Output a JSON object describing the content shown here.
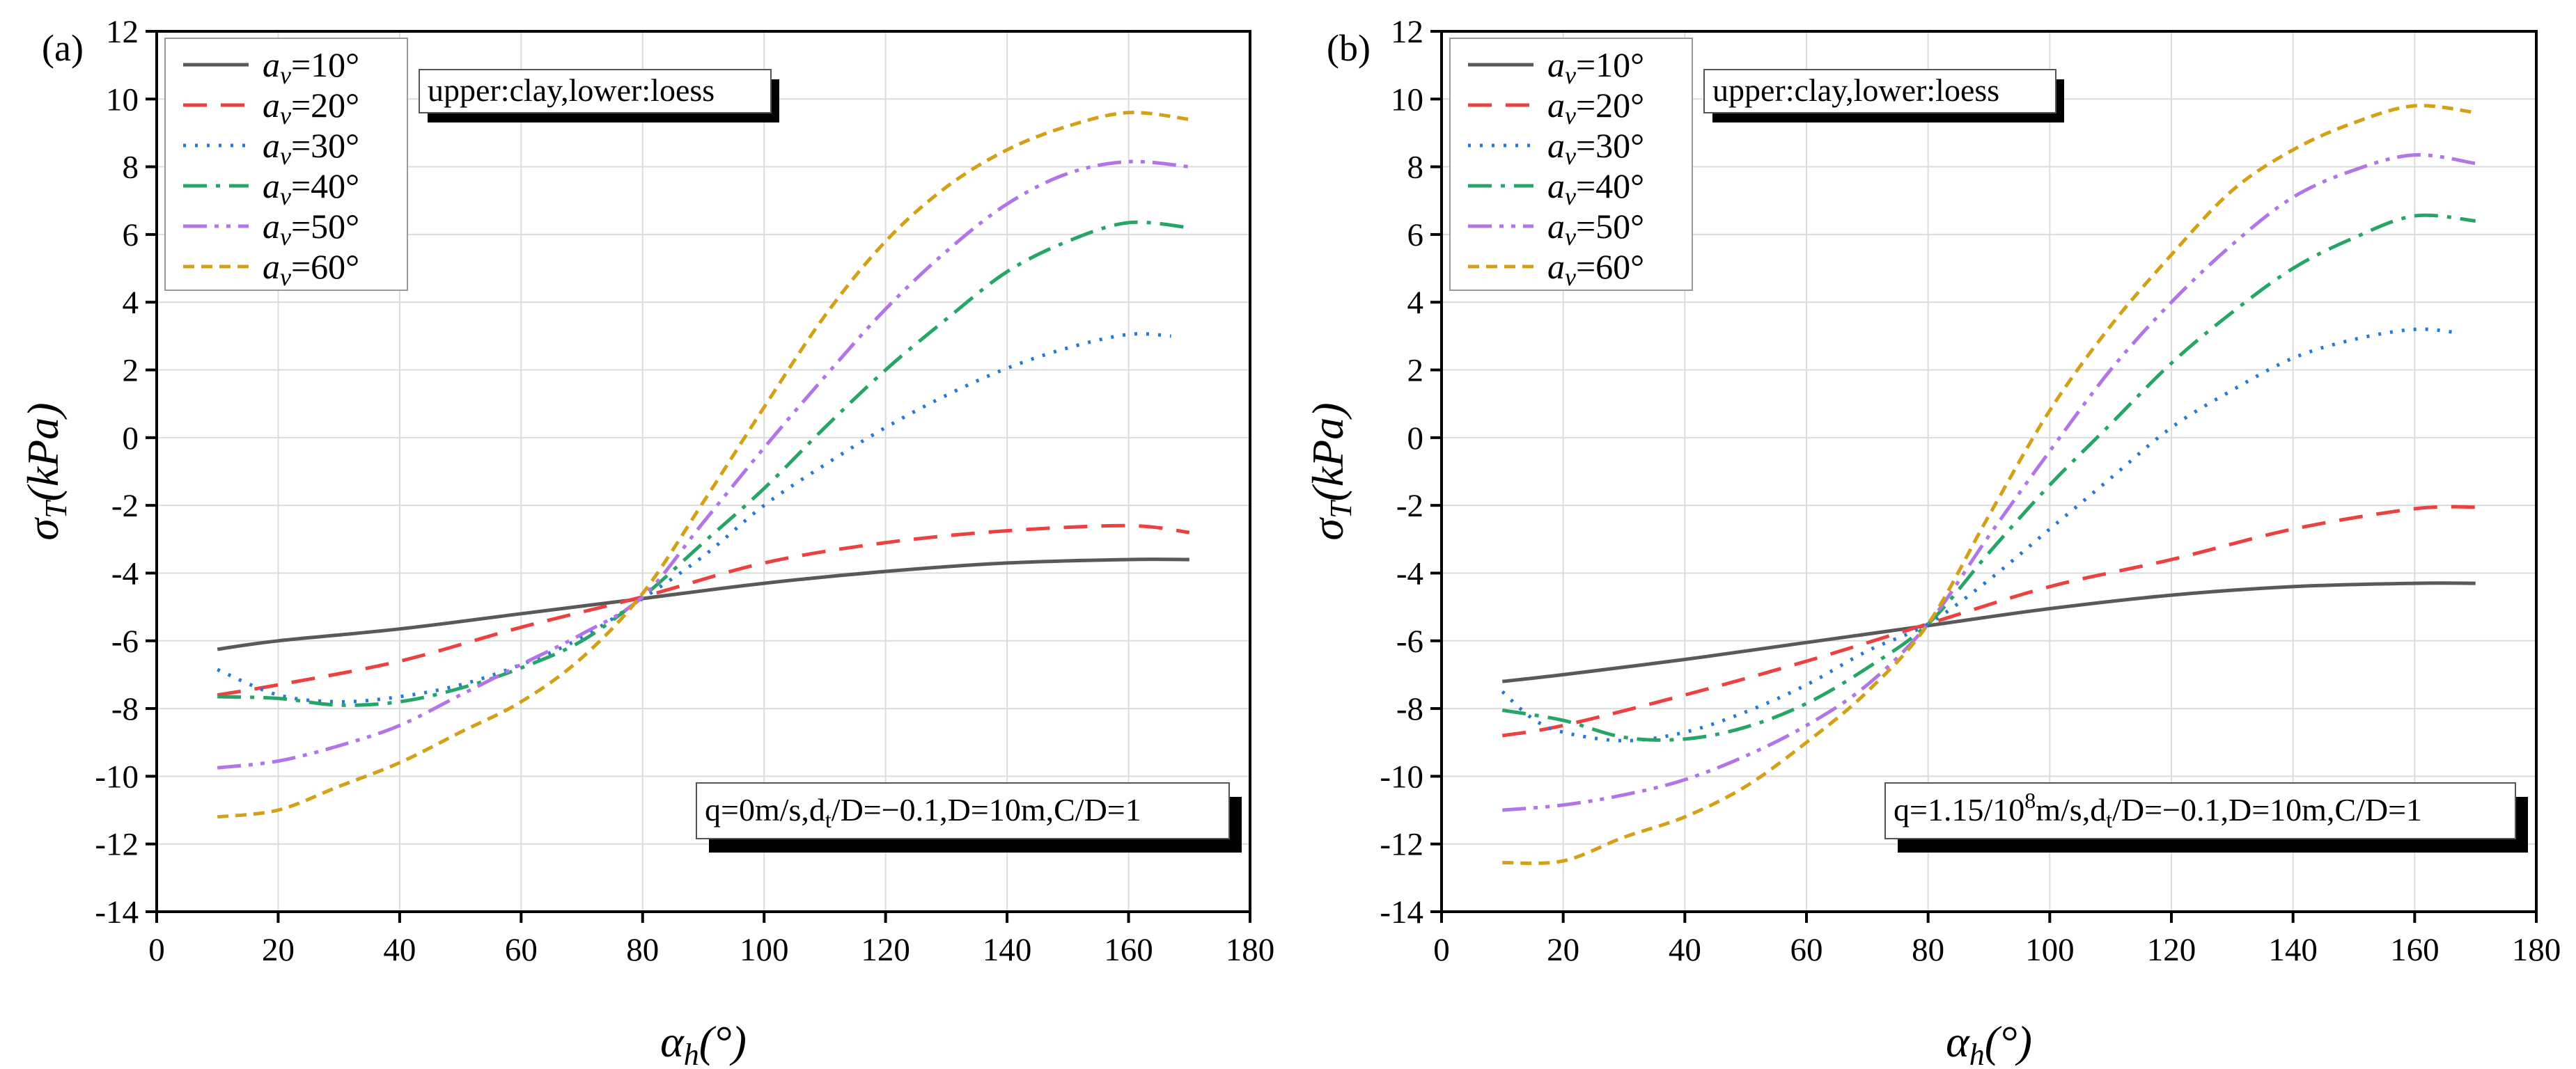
{
  "chart_data": [
    {
      "type": "line",
      "panel_label": "(a)",
      "xlabel": {
        "symbol": "α",
        "sub": "h",
        "unit": "(°)"
      },
      "ylabel": {
        "symbol": "σ",
        "sub": "T",
        "unit": "(kPa)"
      },
      "xlim": [
        0,
        180
      ],
      "ylim": [
        -14,
        12
      ],
      "xticks": [
        "0",
        "20",
        "40",
        "60",
        "80",
        "100",
        "120",
        "140",
        "160",
        "180"
      ],
      "yticks": [
        "-14",
        "-12",
        "-10",
        "-8",
        "-6",
        "-4",
        "-2",
        "0",
        "2",
        "4",
        "6",
        "8",
        "10",
        "12"
      ],
      "grid": true,
      "legend_position": "top-left",
      "annotation_top": "upper:clay,lower:loess",
      "annotation_bottom": {
        "before": "q=0m/s,d",
        "sub": "t",
        "after": "/D=−0.1,D=10m,C/D=1"
      },
      "series": [
        {
          "name": "a_v=10°",
          "label_var": "a",
          "label_sub": "v",
          "label_val": "=10°",
          "color": "#595959",
          "style": "solid",
          "x": [
            10,
            20,
            40,
            60,
            80,
            100,
            120,
            140,
            160,
            170
          ],
          "y": [
            -6.25,
            -6.0,
            -5.65,
            -5.2,
            -4.75,
            -4.3,
            -3.95,
            -3.7,
            -3.6,
            -3.6
          ]
        },
        {
          "name": "a_v=20°",
          "label_var": "a",
          "label_sub": "v",
          "label_val": "=20°",
          "color": "#ec4141",
          "style": "dash",
          "x": [
            10,
            20,
            40,
            60,
            80,
            100,
            120,
            140,
            160,
            170
          ],
          "y": [
            -7.6,
            -7.3,
            -6.6,
            -5.6,
            -4.7,
            -3.7,
            -3.1,
            -2.75,
            -2.6,
            -2.8
          ]
        },
        {
          "name": "a_v=30°",
          "label_var": "a",
          "label_sub": "v",
          "label_val": "=30°",
          "color": "#2878d8",
          "style": "dot",
          "x": [
            10,
            20,
            30,
            40,
            50,
            60,
            70,
            80,
            90,
            100,
            110,
            120,
            130,
            140,
            150,
            160,
            167
          ],
          "y": [
            -6.85,
            -7.6,
            -7.8,
            -7.65,
            -7.3,
            -6.7,
            -5.9,
            -4.75,
            -3.5,
            -2.0,
            -0.8,
            0.3,
            1.25,
            2.05,
            2.65,
            3.05,
            3.0
          ]
        },
        {
          "name": "a_v=40°",
          "label_var": "a",
          "label_sub": "v",
          "label_val": "=40°",
          "color": "#27a567",
          "style": "dashdot",
          "x": [
            10,
            20,
            30,
            40,
            50,
            60,
            70,
            80,
            90,
            100,
            110,
            120,
            130,
            140,
            150,
            160,
            170
          ],
          "y": [
            -7.65,
            -7.7,
            -7.9,
            -7.8,
            -7.4,
            -6.8,
            -6.0,
            -4.7,
            -3.1,
            -1.5,
            0.3,
            2.0,
            3.5,
            4.9,
            5.8,
            6.35,
            6.2
          ]
        },
        {
          "name": "a_v=50°",
          "label_var": "a",
          "label_sub": "v",
          "label_val": "=50°",
          "color": "#b175e8",
          "style": "dashdotdot",
          "x": [
            10,
            20,
            30,
            40,
            50,
            60,
            70,
            80,
            90,
            100,
            110,
            120,
            130,
            140,
            150,
            160,
            170
          ],
          "y": [
            -9.75,
            -9.55,
            -9.1,
            -8.5,
            -7.6,
            -6.7,
            -5.8,
            -4.7,
            -2.5,
            -0.3,
            1.8,
            3.8,
            5.5,
            6.9,
            7.8,
            8.15,
            8.0
          ]
        },
        {
          "name": "a_v=60°",
          "label_var": "a",
          "label_sub": "v",
          "label_val": "=60°",
          "color": "#d4a017",
          "style": "shortdash",
          "x": [
            10,
            20,
            30,
            40,
            50,
            60,
            70,
            80,
            90,
            100,
            110,
            120,
            130,
            140,
            150,
            160,
            170
          ],
          "y": [
            -11.2,
            -11.0,
            -10.3,
            -9.6,
            -8.7,
            -7.8,
            -6.5,
            -4.6,
            -1.9,
            0.9,
            3.6,
            5.8,
            7.4,
            8.5,
            9.2,
            9.6,
            9.4
          ]
        }
      ]
    },
    {
      "type": "line",
      "panel_label": "(b)",
      "xlabel": {
        "symbol": "α",
        "sub": "h",
        "unit": "(°)"
      },
      "ylabel": {
        "symbol": "σ",
        "sub": "T",
        "unit": "(kPa)"
      },
      "xlim": [
        0,
        180
      ],
      "ylim": [
        -14,
        12
      ],
      "xticks": [
        "0",
        "20",
        "40",
        "60",
        "80",
        "100",
        "120",
        "140",
        "160",
        "180"
      ],
      "yticks": [
        "-14",
        "-12",
        "-10",
        "-8",
        "-6",
        "-4",
        "-2",
        "0",
        "2",
        "4",
        "6",
        "8",
        "10",
        "12"
      ],
      "grid": true,
      "legend_position": "top-left",
      "annotation_top": "upper:clay,lower:loess",
      "annotation_bottom": {
        "before": "q=1.15/10",
        "sup": "8",
        "mid": "m/s,d",
        "sub": "t",
        "after": "/D=−0.1,D=10m,C/D=1"
      },
      "series": [
        {
          "name": "a_v=10°",
          "label_var": "a",
          "label_sub": "v",
          "label_val": "=10°",
          "color": "#595959",
          "style": "solid",
          "x": [
            10,
            20,
            40,
            60,
            80,
            100,
            120,
            140,
            160,
            170
          ],
          "y": [
            -7.2,
            -7.0,
            -6.55,
            -6.05,
            -5.55,
            -5.05,
            -4.65,
            -4.4,
            -4.3,
            -4.3
          ]
        },
        {
          "name": "a_v=20°",
          "label_var": "a",
          "label_sub": "v",
          "label_val": "=20°",
          "color": "#ec4141",
          "style": "dash",
          "x": [
            10,
            20,
            40,
            60,
            80,
            100,
            120,
            140,
            160,
            170
          ],
          "y": [
            -8.8,
            -8.5,
            -7.6,
            -6.6,
            -5.5,
            -4.4,
            -3.6,
            -2.7,
            -2.1,
            -2.05
          ]
        },
        {
          "name": "a_v=30°",
          "label_var": "a",
          "label_sub": "v",
          "label_val": "=30°",
          "color": "#2878d8",
          "style": "dot",
          "x": [
            10,
            15,
            20,
            30,
            40,
            50,
            60,
            70,
            80,
            90,
            100,
            110,
            120,
            130,
            140,
            150,
            160,
            167
          ],
          "y": [
            -7.5,
            -8.3,
            -8.7,
            -8.95,
            -8.7,
            -8.1,
            -7.3,
            -6.3,
            -5.5,
            -4.2,
            -2.7,
            -1.2,
            0.3,
            1.4,
            2.35,
            2.9,
            3.2,
            3.1
          ]
        },
        {
          "name": "a_v=40°",
          "label_var": "a",
          "label_sub": "v",
          "label_val": "=40°",
          "color": "#27a567",
          "style": "dashdot",
          "x": [
            10,
            20,
            30,
            40,
            50,
            60,
            70,
            80,
            90,
            100,
            110,
            120,
            130,
            140,
            150,
            160,
            170
          ],
          "y": [
            -8.05,
            -8.35,
            -8.85,
            -8.9,
            -8.55,
            -7.85,
            -6.8,
            -5.5,
            -3.4,
            -1.4,
            0.4,
            2.2,
            3.7,
            5.0,
            5.9,
            6.55,
            6.4
          ]
        },
        {
          "name": "a_v=50°",
          "label_var": "a",
          "label_sub": "v",
          "label_val": "=50°",
          "color": "#b175e8",
          "style": "dashdotdot",
          "x": [
            10,
            20,
            30,
            40,
            50,
            60,
            70,
            80,
            90,
            100,
            110,
            120,
            130,
            140,
            150,
            160,
            170
          ],
          "y": [
            -11.0,
            -10.85,
            -10.55,
            -10.1,
            -9.4,
            -8.5,
            -7.3,
            -5.5,
            -2.9,
            -0.4,
            2.0,
            4.0,
            5.7,
            7.1,
            7.9,
            8.35,
            8.1
          ]
        },
        {
          "name": "a_v=60°",
          "label_var": "a",
          "label_sub": "v",
          "label_val": "=60°",
          "color": "#d4a017",
          "style": "shortdash",
          "x": [
            10,
            20,
            30,
            40,
            50,
            60,
            70,
            80,
            90,
            100,
            110,
            120,
            130,
            140,
            150,
            160,
            170
          ],
          "y": [
            -12.55,
            -12.5,
            -11.8,
            -11.2,
            -10.3,
            -9.0,
            -7.5,
            -5.5,
            -2.3,
            0.8,
            3.3,
            5.4,
            7.3,
            8.5,
            9.3,
            9.8,
            9.6
          ]
        }
      ]
    }
  ]
}
